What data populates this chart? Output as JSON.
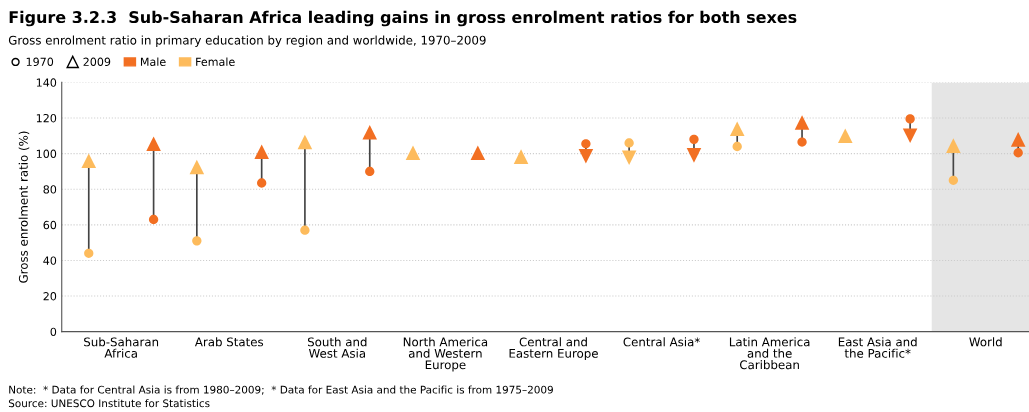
{
  "chart_data": {
    "type": "scatter",
    "title": "Figure 3.2.3  Sub-Saharan Africa leading gains in gross enrolment ratios for both sexes",
    "subtitle": "Gross enrolment ratio in primary education by region and worldwide, 1970–2009",
    "ylabel": "Gross enrolment ratio (%)",
    "categories": [
      "Sub-Saharan\nAfrica",
      "Arab States",
      "South and\nWest Asia",
      "North America\nand Western\nEurope",
      "Central and\nEastern Europe",
      "Central Asia*",
      "Latin America\nand the\nCaribbean",
      "East Asia and\nthe Pacific*",
      "World"
    ],
    "series": [
      {
        "name": "Female",
        "color": "#fdbb5c",
        "marker": "circle",
        "values": [
          44,
          51,
          57,
          null,
          null,
          106,
          104,
          null,
          85
        ]
      },
      {
        "color": "#fdbb5c",
        "marker": "triangle",
        "values": [
          96,
          92.5,
          106.5,
          100.5,
          98.3,
          97.7,
          114,
          110,
          104.5
        ]
      },
      {
        "name": "Male",
        "color": "#f26f22",
        "marker": "circle",
        "values": [
          63,
          83.5,
          90,
          null,
          105.5,
          108,
          106.5,
          119.5,
          100.5
        ]
      },
      {
        "color": "#f26f22",
        "marker": "triangle",
        "values": [
          105.5,
          101,
          112,
          100.5,
          98.5,
          99,
          117.5,
          110,
          108
        ]
      }
    ],
    "ylim": [
      0,
      140
    ],
    "yticks": [
      0,
      20,
      40,
      60,
      80,
      100,
      120,
      140
    ],
    "grid": "y",
    "legend": "top left",
    "bands": [
      {
        "axis": "x",
        "from": "World",
        "to": "World",
        "color": "#e5e5e5"
      }
    ],
    "annotations": [
      "1970",
      "2009",
      "Note:  * Data for Central Asia is from 1980–2009;  * Data for East Asia and the Pacific is from 1975–2009",
      "Source: UNESCO Institute for Statistics"
    ]
  }
}
